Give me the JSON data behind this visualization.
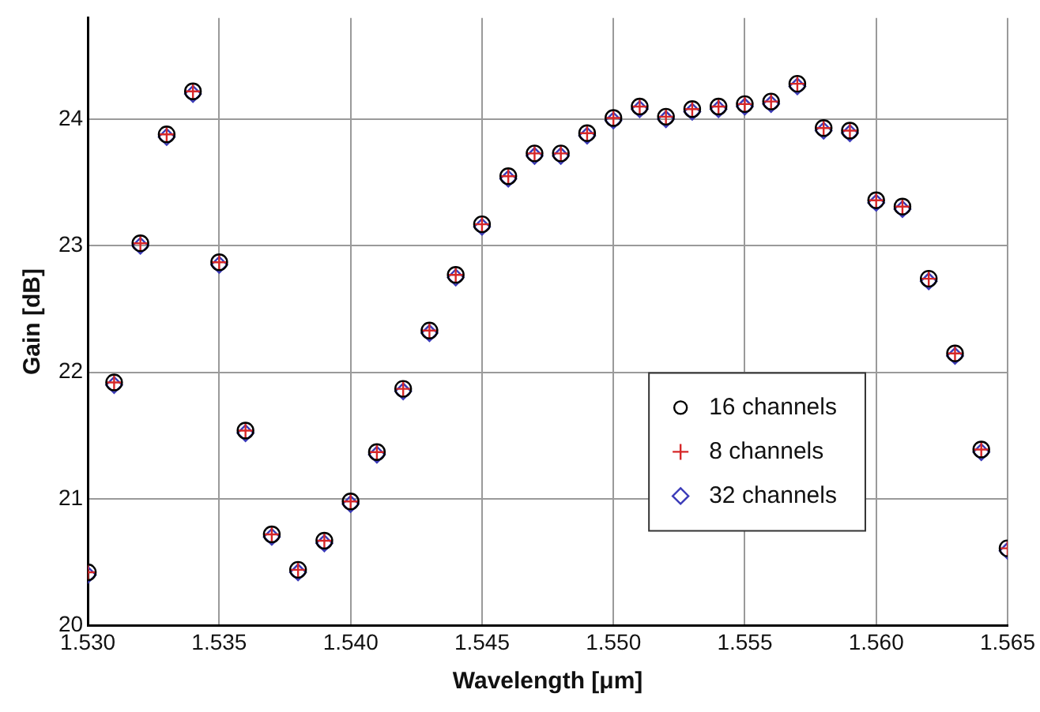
{
  "chart_data": {
    "type": "scatter",
    "xlabel": "Wavelength [μm]",
    "ylabel": "Gain [dB]",
    "x": [
      1.53,
      1.531,
      1.532,
      1.533,
      1.534,
      1.535,
      1.536,
      1.537,
      1.538,
      1.539,
      1.54,
      1.541,
      1.542,
      1.543,
      1.544,
      1.545,
      1.546,
      1.547,
      1.548,
      1.549,
      1.55,
      1.551,
      1.552,
      1.553,
      1.554,
      1.555,
      1.556,
      1.557,
      1.558,
      1.559,
      1.56,
      1.561,
      1.562,
      1.563,
      1.564,
      1.565
    ],
    "series": [
      {
        "name": "16 channels",
        "color": "#000000",
        "marker": "circle",
        "values": [
          20.42,
          21.92,
          23.02,
          23.88,
          24.22,
          22.87,
          21.54,
          20.72,
          20.44,
          20.67,
          20.98,
          21.37,
          21.87,
          22.33,
          22.77,
          23.17,
          23.55,
          23.73,
          23.73,
          23.89,
          24.01,
          24.1,
          24.02,
          24.08,
          24.1,
          24.12,
          24.14,
          24.28,
          23.93,
          23.91,
          23.36,
          23.31,
          22.74,
          22.15,
          21.39,
          20.61
        ]
      },
      {
        "name": "8 channels",
        "color": "#d62728",
        "marker": "cross",
        "values": [
          20.42,
          21.92,
          23.02,
          23.88,
          24.22,
          22.87,
          21.54,
          20.72,
          20.44,
          20.67,
          20.98,
          21.37,
          21.87,
          22.33,
          22.77,
          23.17,
          23.55,
          23.73,
          23.73,
          23.89,
          24.01,
          24.1,
          24.02,
          24.08,
          24.1,
          24.12,
          24.14,
          24.28,
          23.93,
          23.91,
          23.36,
          23.31,
          22.74,
          22.15,
          21.39,
          20.61
        ]
      },
      {
        "name": "32 channels",
        "color": "#3a3ab8",
        "marker": "diamond",
        "values": [
          20.4,
          21.9,
          23.0,
          23.86,
          24.2,
          22.85,
          21.52,
          20.7,
          20.42,
          20.65,
          20.96,
          21.35,
          21.85,
          22.31,
          22.75,
          23.15,
          23.53,
          23.71,
          23.71,
          23.87,
          23.99,
          24.08,
          24.0,
          24.06,
          24.08,
          24.1,
          24.12,
          24.26,
          23.91,
          23.89,
          23.34,
          23.29,
          22.72,
          22.13,
          21.37,
          20.59
        ]
      }
    ],
    "xlim": [
      1.53,
      1.565
    ],
    "xticks": [
      {
        "value": 1.53,
        "label": "1.530"
      },
      {
        "value": 1.535,
        "label": "1.535"
      },
      {
        "value": 1.54,
        "label": "1.540"
      },
      {
        "value": 1.545,
        "label": "1.545"
      },
      {
        "value": 1.55,
        "label": "1.550"
      },
      {
        "value": 1.555,
        "label": "1.555"
      },
      {
        "value": 1.56,
        "label": "1.560"
      },
      {
        "value": 1.565,
        "label": "1.565"
      }
    ],
    "ylim": [
      20,
      24.8
    ],
    "yticks": [
      20,
      21,
      22,
      23,
      24
    ],
    "grid": true,
    "legend": "bottom right"
  }
}
